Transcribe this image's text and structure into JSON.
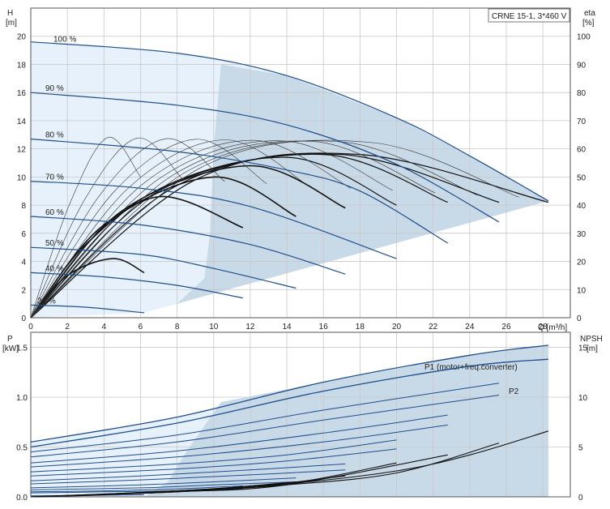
{
  "chart_data": [
    {
      "type": "line",
      "title": "",
      "model_label": "CRNE 15-1, 3*460 V",
      "xlabel": "Q [m³/h]",
      "ylabel_left": "H",
      "ylabel_left_unit": "[m]",
      "ylabel_right": "eta",
      "ylabel_right_unit": "[%]",
      "xlim": [
        0,
        29.5
      ],
      "ylim_left": [
        0,
        22
      ],
      "ylim_right": [
        0,
        110
      ],
      "x_ticks": [
        0,
        2,
        4,
        6,
        8,
        10,
        12,
        14,
        16,
        18,
        20,
        22,
        24,
        26,
        28
      ],
      "y_ticks_left": [
        0,
        2,
        4,
        6,
        8,
        10,
        12,
        14,
        16,
        18,
        20
      ],
      "y_ticks_right": [
        0,
        10,
        20,
        30,
        40,
        50,
        60,
        70,
        80,
        90,
        100
      ],
      "grid": true,
      "colors": {
        "head_curve": "#1f4e8c",
        "eta_curve": "#111111",
        "thin_curve": "#333333",
        "region_light": "#e6f1fb",
        "region_dark": "#c8d9e8"
      },
      "head_curves": [
        {
          "label": "100 %",
          "x": [
            0,
            8,
            14,
            20,
            24,
            28.3
          ],
          "y": [
            19.6,
            18.8,
            17.2,
            14.2,
            11.5,
            8.3
          ]
        },
        {
          "label": "90 %",
          "x": [
            0,
            8,
            14,
            20,
            25.6
          ],
          "y": [
            16,
            15.1,
            13.7,
            10.9,
            6.8
          ]
        },
        {
          "label": "80 %",
          "x": [
            0,
            8,
            14,
            18,
            22.8
          ],
          "y": [
            12.7,
            11.8,
            10.5,
            9.0,
            5.3
          ]
        },
        {
          "label": "70 %",
          "x": [
            0,
            6,
            12,
            20
          ],
          "y": [
            9.7,
            9.2,
            7.9,
            4.2
          ]
        },
        {
          "label": "60 %",
          "x": [
            0,
            6,
            12,
            17.2
          ],
          "y": [
            7.2,
            6.6,
            5.2,
            3.1
          ]
        },
        {
          "label": "50 %",
          "x": [
            0,
            6,
            10,
            14.5
          ],
          "y": [
            5.0,
            4.5,
            3.5,
            2.1
          ]
        },
        {
          "label": "40 %",
          "x": [
            0,
            4,
            8,
            11.6
          ],
          "y": [
            3.2,
            2.9,
            2.3,
            1.4
          ]
        },
        {
          "label": "21 %",
          "x": [
            0,
            3,
            6.2
          ],
          "y": [
            0.9,
            0.75,
            0.35
          ]
        }
      ],
      "eta_curves": [
        {
          "x": [
            0,
            2,
            4.5,
            6.2
          ],
          "y": [
            0,
            15,
            21,
            16
          ]
        },
        {
          "x": [
            0,
            3,
            7,
            11.6
          ],
          "y": [
            0,
            26,
            43,
            32
          ]
        },
        {
          "x": [
            0,
            4,
            10,
            14.5
          ],
          "y": [
            0,
            33,
            50,
            36
          ]
        },
        {
          "x": [
            0,
            5,
            12,
            17.2
          ],
          "y": [
            0,
            38,
            54,
            39
          ]
        },
        {
          "x": [
            0,
            6,
            14,
            20
          ],
          "y": [
            0,
            42,
            57,
            40
          ]
        },
        {
          "x": [
            0,
            7,
            16,
            22.8
          ],
          "y": [
            0,
            45,
            58,
            41
          ]
        },
        {
          "x": [
            0,
            8,
            17,
            25.6
          ],
          "y": [
            0,
            47,
            58,
            41
          ]
        },
        {
          "x": [
            0,
            9,
            18,
            28.3
          ],
          "y": [
            0,
            49,
            58,
            41
          ]
        }
      ]
    },
    {
      "type": "line",
      "title": "",
      "xlabel": "",
      "ylabel_left": "P",
      "ylabel_left_unit": "[kW]",
      "ylabel_right": "NPSH",
      "ylabel_right_unit": "[m]",
      "xlim": [
        0,
        29.5
      ],
      "ylim_left": [
        0,
        1.65
      ],
      "ylim_right": [
        0,
        16.5
      ],
      "y_ticks_left": [
        0,
        0.5,
        1.0,
        1.5
      ],
      "y_tick_labels_left": [
        "0.0",
        "0.5",
        "1.0",
        "1.5"
      ],
      "y_ticks_right": [
        0,
        5,
        10,
        15
      ],
      "grid": true,
      "series": [
        {
          "name": "P1 (motor+freq.converter)",
          "x": [
            0,
            8,
            16,
            24,
            28.3
          ],
          "y": [
            0.55,
            0.8,
            1.15,
            1.42,
            1.52
          ]
        },
        {
          "name": "P2",
          "x": [
            0,
            8,
            16,
            24,
            28.3
          ],
          "y": [
            0.5,
            0.74,
            1.06,
            1.31,
            1.38
          ]
        }
      ],
      "other_power_curves": [
        {
          "x": [
            0,
            8,
            16,
            25.6
          ],
          "y": [
            0.45,
            0.62,
            0.87,
            1.14
          ]
        },
        {
          "x": [
            0,
            8,
            16,
            25.6
          ],
          "y": [
            0.4,
            0.55,
            0.77,
            1.02
          ]
        },
        {
          "x": [
            0,
            8,
            16,
            22.8
          ],
          "y": [
            0.34,
            0.46,
            0.64,
            0.82
          ]
        },
        {
          "x": [
            0,
            8,
            16,
            22.8
          ],
          "y": [
            0.3,
            0.4,
            0.55,
            0.72
          ]
        },
        {
          "x": [
            0,
            8,
            14,
            20
          ],
          "y": [
            0.25,
            0.33,
            0.42,
            0.57
          ]
        },
        {
          "x": [
            0,
            8,
            14,
            20
          ],
          "y": [
            0.21,
            0.28,
            0.36,
            0.48
          ]
        },
        {
          "x": [
            0,
            6,
            12,
            17.2
          ],
          "y": [
            0.16,
            0.21,
            0.27,
            0.33
          ]
        },
        {
          "x": [
            0,
            6,
            12,
            17.2
          ],
          "y": [
            0.13,
            0.17,
            0.22,
            0.27
          ]
        },
        {
          "x": [
            0,
            6,
            10,
            14.5
          ],
          "y": [
            0.09,
            0.12,
            0.15,
            0.19
          ]
        },
        {
          "x": [
            0,
            6,
            10,
            14.5
          ],
          "y": [
            0.07,
            0.09,
            0.12,
            0.15
          ]
        },
        {
          "x": [
            0,
            4,
            8,
            11.6
          ],
          "y": [
            0.05,
            0.06,
            0.08,
            0.11
          ]
        },
        {
          "x": [
            0,
            4,
            8,
            11.6
          ],
          "y": [
            0.04,
            0.05,
            0.06,
            0.08
          ]
        },
        {
          "x": [
            0,
            3,
            6.2
          ],
          "y": [
            0.01,
            0.015,
            0.02
          ]
        }
      ],
      "npsh_curves": [
        {
          "x": [
            0,
            8,
            14,
            20,
            24,
            28.3
          ],
          "y": [
            0,
            0.6,
            1.3,
            2.6,
            4.2,
            6.6
          ]
        },
        {
          "x": [
            0,
            8,
            14,
            20,
            25.6
          ],
          "y": [
            0,
            0.5,
            1.2,
            2.4,
            5.4
          ]
        },
        {
          "x": [
            0,
            8,
            14,
            22.8
          ],
          "y": [
            0,
            0.5,
            1.2,
            4.2
          ]
        },
        {
          "x": [
            0,
            8,
            14,
            20
          ],
          "y": [
            0,
            0.6,
            1.3,
            3.4
          ]
        },
        {
          "x": [
            0,
            6,
            12,
            17.2
          ],
          "y": [
            0,
            0.4,
            1.0,
            2.1
          ]
        },
        {
          "x": [
            0,
            6,
            10,
            14.5
          ],
          "y": [
            0,
            0.4,
            0.8,
            1.5
          ]
        },
        {
          "x": [
            0,
            4,
            8,
            11.6
          ],
          "y": [
            0,
            0.2,
            0.6,
            1.0
          ]
        }
      ]
    }
  ]
}
